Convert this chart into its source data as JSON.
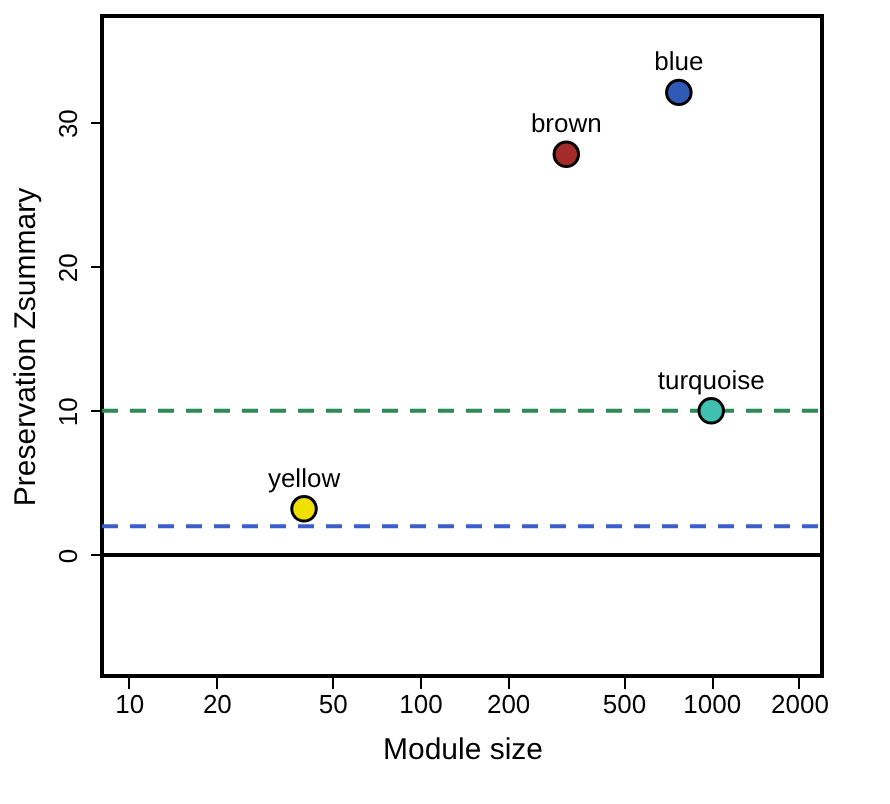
{
  "chart_data": {
    "type": "scatter",
    "xlabel": "Module size",
    "ylabel": "Preservation Zsummary",
    "log": "x",
    "xlim": [
      8.1,
      2400
    ],
    "ylim": [
      -8.4,
      37.4
    ],
    "xticks": [
      10,
      20,
      50,
      100,
      200,
      500,
      1000,
      2000
    ],
    "yticks": [
      0,
      10,
      20,
      30
    ],
    "grid": false,
    "series": [
      {
        "name": "blue",
        "color": "#2f5bb7",
        "x": [
          774
        ],
        "values": [
          32.1
        ]
      },
      {
        "name": "brown",
        "color": "#a52a2a",
        "x": [
          318
        ],
        "values": [
          27.8
        ]
      },
      {
        "name": "turquoise",
        "color": "#40c0b0",
        "x": [
          1000
        ],
        "values": [
          10.0
        ]
      },
      {
        "name": "yellow",
        "color": "#f0e000",
        "x": [
          40
        ],
        "values": [
          3.2
        ]
      }
    ],
    "ref_lines": [
      {
        "axis": "y",
        "value": 10,
        "color": "#2e8b57",
        "line_style": "dashed"
      },
      {
        "axis": "y",
        "value": 2,
        "color": "#3a5fcd",
        "line_style": "dashed"
      },
      {
        "axis": "y",
        "value": 0,
        "color": "#000000",
        "line_style": "solid"
      }
    ]
  }
}
